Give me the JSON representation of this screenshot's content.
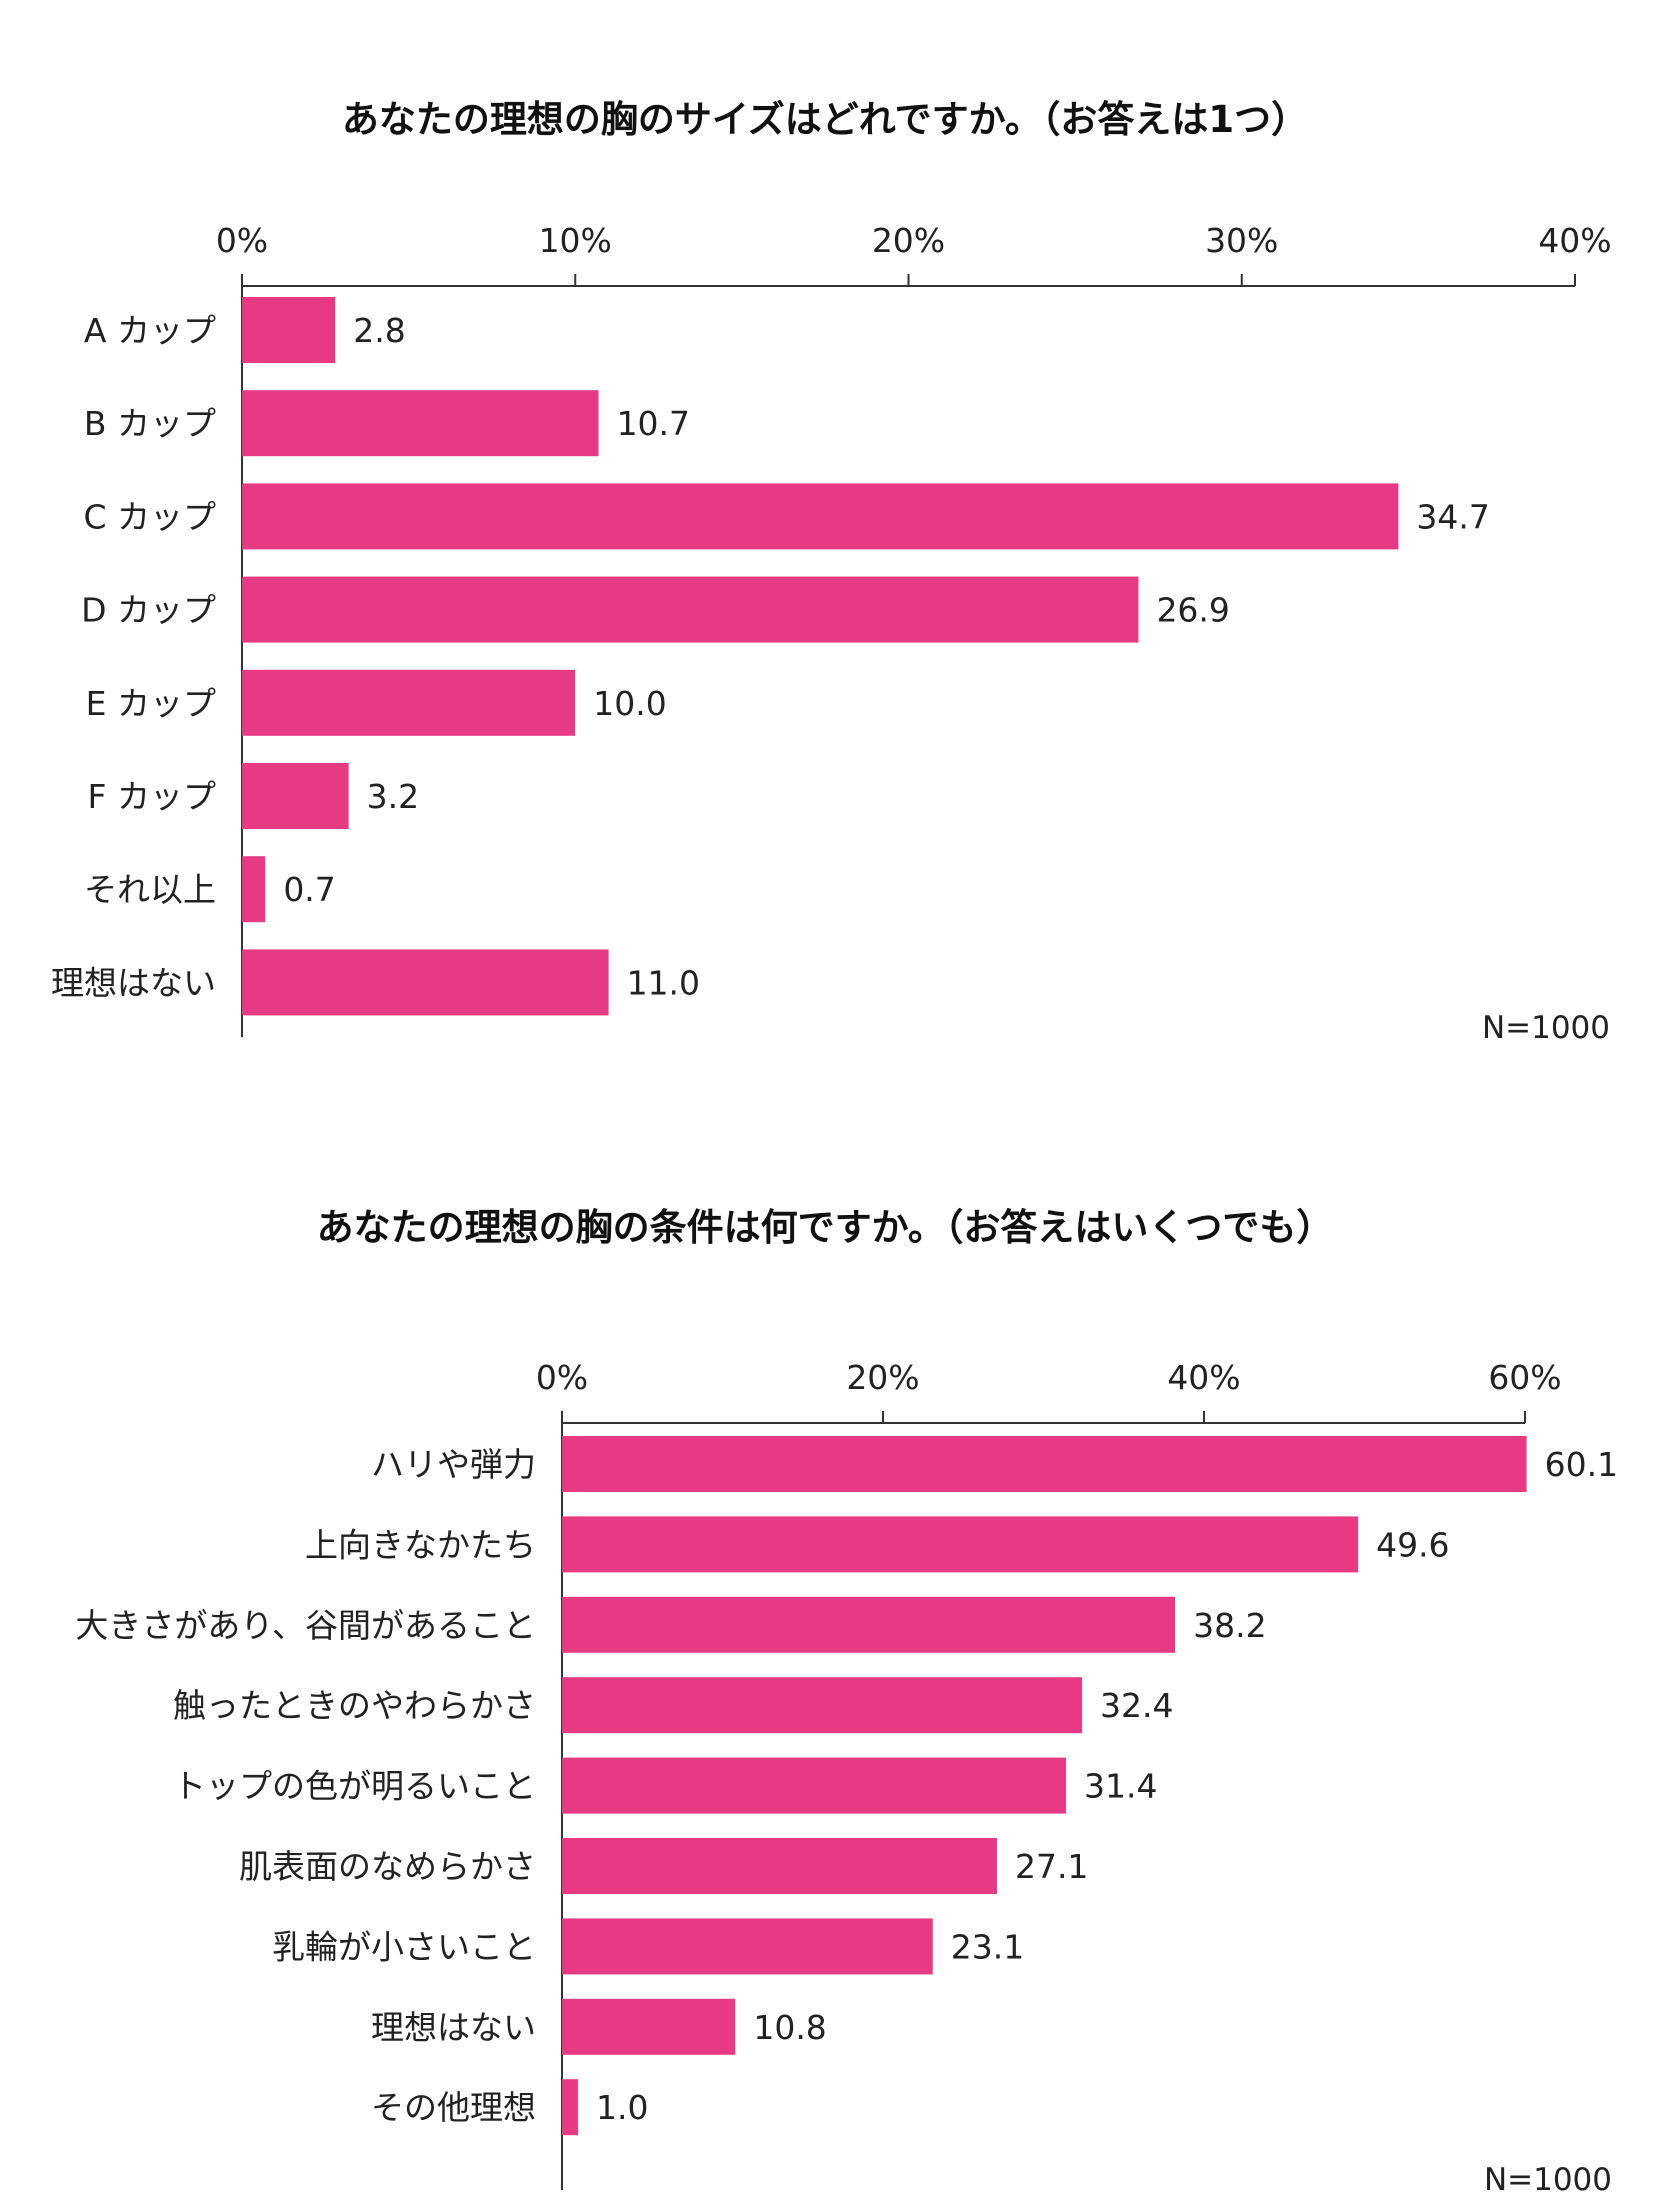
{
  "chart_data": [
    {
      "type": "bar",
      "orientation": "horizontal",
      "title": "あなたの理想の胸のサイズはどれですか。（お答えは1つ）",
      "categories": [
        "A カップ",
        "B カップ",
        "C カップ",
        "D カップ",
        "E カップ",
        "F カップ",
        "それ以上",
        "理想はない"
      ],
      "values": [
        2.8,
        10.7,
        34.7,
        26.9,
        10.0,
        3.2,
        0.7,
        11.0
      ],
      "value_labels": [
        "2.8",
        "10.7",
        "34.7",
        "26.9",
        "10.0",
        "3.2",
        "0.7",
        "11.0"
      ],
      "xlim": [
        0,
        40
      ],
      "ticks": [
        0,
        10,
        20,
        30,
        40
      ],
      "tick_labels": [
        "0%",
        "10%",
        "20%",
        "30%",
        "40%"
      ],
      "axis_position": "top",
      "note": "N=1000",
      "bar_color": "#e63b82"
    },
    {
      "type": "bar",
      "orientation": "horizontal",
      "title": "あなたの理想の胸の条件は何ですか。（お答えはいくつでも）",
      "categories": [
        "ハリや弾力",
        "上向きなかたち",
        "大きさがあり、谷間があること",
        "触ったときのやわらかさ",
        "トップの色が明るいこと",
        "肌表面のなめらかさ",
        "乳輪が小さいこと",
        "理想はない",
        "その他理想"
      ],
      "values": [
        60.1,
        49.6,
        38.2,
        32.4,
        31.4,
        27.1,
        23.1,
        10.8,
        1.0
      ],
      "value_labels": [
        "60.1",
        "49.6",
        "38.2",
        "32.4",
        "31.4",
        "27.1",
        "23.1",
        "10.8",
        "1.0"
      ],
      "xlim": [
        0,
        60
      ],
      "ticks": [
        0,
        20,
        40,
        60
      ],
      "tick_labels": [
        "0%",
        "20%",
        "40%",
        "60%"
      ],
      "axis_position": "top",
      "note": "N=1000",
      "bar_color": "#e63b82"
    }
  ]
}
